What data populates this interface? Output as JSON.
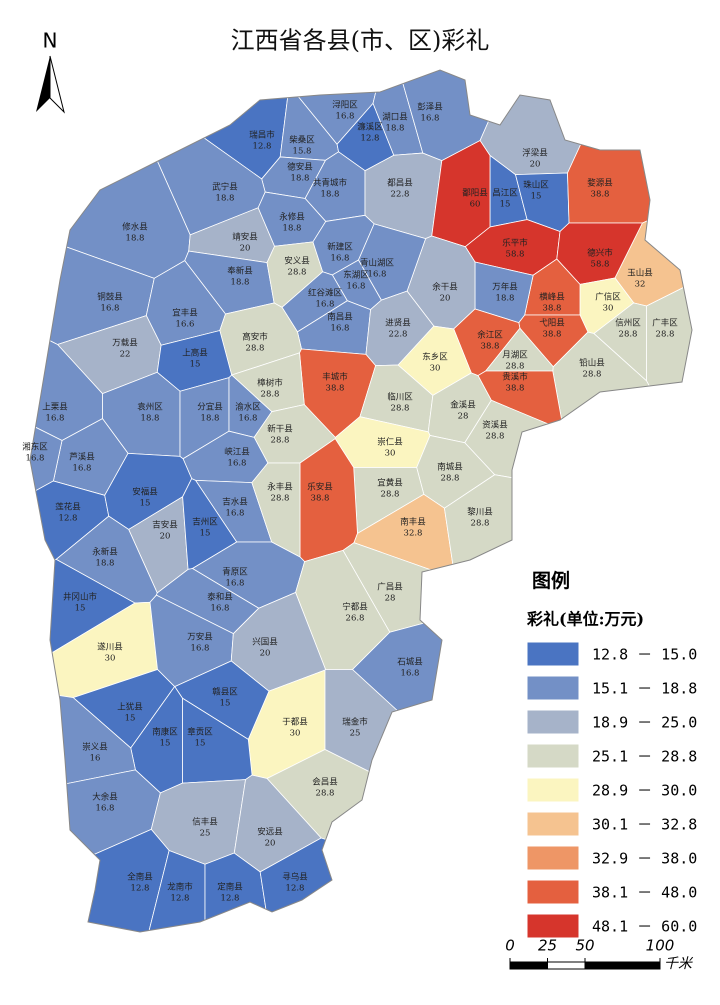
{
  "title": "江西省各县(市、区)彩礼",
  "north": "N",
  "legend": {
    "title": "图例",
    "subtitle": "彩礼(单位:万元)",
    "items": [
      {
        "min": 12.8,
        "max": 15.0,
        "label": "12.8 － 15.0",
        "color": "#4a74c2"
      },
      {
        "min": 15.1,
        "max": 18.8,
        "label": "15.1 － 18.8",
        "color": "#7390c6"
      },
      {
        "min": 18.9,
        "max": 25.0,
        "label": "18.9 － 25.0",
        "color": "#a6b3c9"
      },
      {
        "min": 25.1,
        "max": 28.8,
        "label": "25.1 － 28.8",
        "color": "#d5d9c6"
      },
      {
        "min": 28.9,
        "max": 30.0,
        "label": "28.9 － 30.0",
        "color": "#fbf5c0"
      },
      {
        "min": 30.1,
        "max": 32.8,
        "label": "30.1 － 32.8",
        "color": "#f5c390"
      },
      {
        "min": 32.9,
        "max": 38.0,
        "label": "32.9 － 38.0",
        "color": "#ee9666"
      },
      {
        "min": 38.1,
        "max": 48.0,
        "label": "38.1 － 48.0",
        "color": "#e4603f"
      },
      {
        "min": 48.1,
        "max": 60.0,
        "label": "48.1 － 60.0",
        "color": "#d6352c"
      }
    ]
  },
  "scale": {
    "ticks": [
      0,
      25,
      50,
      100
    ],
    "unit": "千米"
  },
  "counties": [
    {
      "name": "瑞昌市",
      "value": 12.8
    },
    {
      "name": "柴桑区",
      "value": 15.8
    },
    {
      "name": "浔阳区",
      "value": 16.8
    },
    {
      "name": "濂溪区",
      "value": 12.8
    },
    {
      "name": "湖口县",
      "value": 18.8
    },
    {
      "name": "彭泽县",
      "value": 16.8
    },
    {
      "name": "德安县",
      "value": 18.8
    },
    {
      "name": "共青城市",
      "value": 18.8
    },
    {
      "name": "都昌县",
      "value": 22.8
    },
    {
      "name": "浮梁县",
      "value": 20
    },
    {
      "name": "昌江区",
      "value": 15
    },
    {
      "name": "珠山区",
      "value": 15
    },
    {
      "name": "鄱阳县",
      "value": 60
    },
    {
      "name": "婺源县",
      "value": 38.8
    },
    {
      "name": "乐平市",
      "value": 58.8
    },
    {
      "name": "德兴市",
      "value": 58.8
    },
    {
      "name": "玉山县",
      "value": 32
    },
    {
      "name": "广信区",
      "value": 30
    },
    {
      "name": "信州区",
      "value": 28.8
    },
    {
      "name": "广丰区",
      "value": 28.8
    },
    {
      "name": "横峰县",
      "value": 38.8
    },
    {
      "name": "弋阳县",
      "value": 38.8
    },
    {
      "name": "铅山县",
      "value": 28.8
    },
    {
      "name": "万年县",
      "value": 18.8
    },
    {
      "name": "余干县",
      "value": 20
    },
    {
      "name": "余江区",
      "value": 38.8
    },
    {
      "name": "月湖区",
      "value": 28.8
    },
    {
      "name": "贵溪市",
      "value": 38.8
    },
    {
      "name": "武宁县",
      "value": 18.8
    },
    {
      "name": "修水县",
      "value": 18.8
    },
    {
      "name": "靖安县",
      "value": 20
    },
    {
      "name": "永修县",
      "value": 18.8
    },
    {
      "name": "奉新县",
      "value": 18.8
    },
    {
      "name": "安义县",
      "value": 28.8
    },
    {
      "name": "新建区",
      "value": 16.8
    },
    {
      "name": "东湖区",
      "value": 16.8
    },
    {
      "name": "青山湖区",
      "value": 16.8
    },
    {
      "name": "红谷滩区",
      "value": 16.8
    },
    {
      "name": "南昌县",
      "value": 16.8
    },
    {
      "name": "进贤县",
      "value": 22.8
    },
    {
      "name": "铜鼓县",
      "value": 16.8
    },
    {
      "name": "宜丰县",
      "value": 16.6
    },
    {
      "name": "高安市",
      "value": 28.8
    },
    {
      "name": "万载县",
      "value": 22
    },
    {
      "name": "上高县",
      "value": 15
    },
    {
      "name": "丰城市",
      "value": 38.8
    },
    {
      "name": "樟树市",
      "value": 28.8
    },
    {
      "name": "东乡区",
      "value": 30
    },
    {
      "name": "临川区",
      "value": 28.8
    },
    {
      "name": "金溪县",
      "value": 28
    },
    {
      "name": "袁州区",
      "value": 18.8
    },
    {
      "name": "分宜县",
      "value": 18.8
    },
    {
      "name": "渝水区",
      "value": 16.8
    },
    {
      "name": "上栗县",
      "value": 16.8
    },
    {
      "name": "芦溪县",
      "value": 16.8
    },
    {
      "name": "湘东区",
      "value": 16.8
    },
    {
      "name": "新干县",
      "value": 28.8
    },
    {
      "name": "崇仁县",
      "value": 30
    },
    {
      "name": "资溪县",
      "value": 28.8
    },
    {
      "name": "峡江县",
      "value": 16.8
    },
    {
      "name": "南城县",
      "value": 28.8
    },
    {
      "name": "宜黄县",
      "value": 28.8
    },
    {
      "name": "乐安县",
      "value": 38.8
    },
    {
      "name": "莲花县",
      "value": 12.8
    },
    {
      "name": "安福县",
      "value": 15
    },
    {
      "name": "吉水县",
      "value": 16.8
    },
    {
      "name": "永丰县",
      "value": 28.8
    },
    {
      "name": "南丰县",
      "value": 32.8
    },
    {
      "name": "黎川县",
      "value": 28.8
    },
    {
      "name": "吉安县",
      "value": 20
    },
    {
      "name": "吉州区",
      "value": 15
    },
    {
      "name": "永新县",
      "value": 18.8
    },
    {
      "name": "青原区",
      "value": 16.8
    },
    {
      "name": "广昌县",
      "value": 28
    },
    {
      "name": "井冈山市",
      "value": 15
    },
    {
      "name": "泰和县",
      "value": 16.8
    },
    {
      "name": "宁都县",
      "value": 26.8
    },
    {
      "name": "遂川县",
      "value": 30
    },
    {
      "name": "万安县",
      "value": 16.8
    },
    {
      "name": "兴国县",
      "value": 20
    },
    {
      "name": "石城县",
      "value": 16.8
    },
    {
      "name": "于都县",
      "value": 30
    },
    {
      "name": "瑞金市",
      "value": 25
    },
    {
      "name": "赣县区",
      "value": 15
    },
    {
      "name": "上犹县",
      "value": 15
    },
    {
      "name": "南康区",
      "value": 15
    },
    {
      "name": "章贡区",
      "value": 15
    },
    {
      "name": "崇义县",
      "value": 16
    },
    {
      "name": "大余县",
      "value": 16.8
    },
    {
      "name": "会昌县",
      "value": 28.8
    },
    {
      "name": "信丰县",
      "value": 25
    },
    {
      "name": "安远县",
      "value": 20
    },
    {
      "name": "全南县",
      "value": 12.8
    },
    {
      "name": "龙南市",
      "value": 12.8
    },
    {
      "name": "定南县",
      "value": 12.8
    },
    {
      "name": "寻乌县",
      "value": 12.8
    }
  ]
}
